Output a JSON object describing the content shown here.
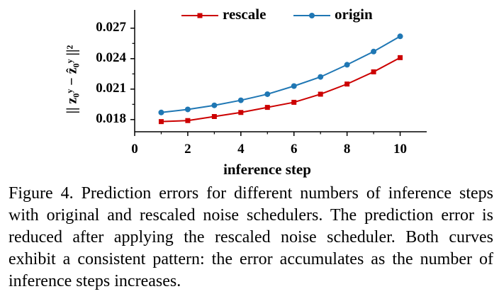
{
  "chart_data": {
    "type": "line",
    "xlabel": "inference step",
    "ylabel": "|| z₀ʸ − ẑ₀ʸ ||²",
    "x": [
      1,
      2,
      3,
      4,
      5,
      6,
      7,
      8,
      9,
      10
    ],
    "xlim": [
      0,
      11
    ],
    "ylim": [
      0.0168,
      0.0288
    ],
    "xticks": [
      "0",
      "2",
      "4",
      "6",
      "8",
      "10"
    ],
    "yticks": [
      "0.018",
      "0.021",
      "0.024",
      "0.027"
    ],
    "grid": false,
    "legend": "top",
    "series": [
      {
        "name": "rescale",
        "color": "#cc0000",
        "marker": "square",
        "values": [
          0.0178,
          0.0179,
          0.0183,
          0.0187,
          0.0192,
          0.0197,
          0.0205,
          0.0215,
          0.0227,
          0.0241
        ]
      },
      {
        "name": "origin",
        "color": "#1f77b4",
        "marker": "circle",
        "values": [
          0.0187,
          0.019,
          0.0194,
          0.0199,
          0.0205,
          0.0213,
          0.0222,
          0.0234,
          0.0247,
          0.0262
        ]
      }
    ]
  },
  "caption": "Figure 4. Prediction errors for different numbers of inference steps with original and rescaled noise schedulers. The prediction error is reduced after applying the rescaled noise scheduler. Both curves exhibit a consistent pattern: the error accumulates as the number of inference steps increases."
}
